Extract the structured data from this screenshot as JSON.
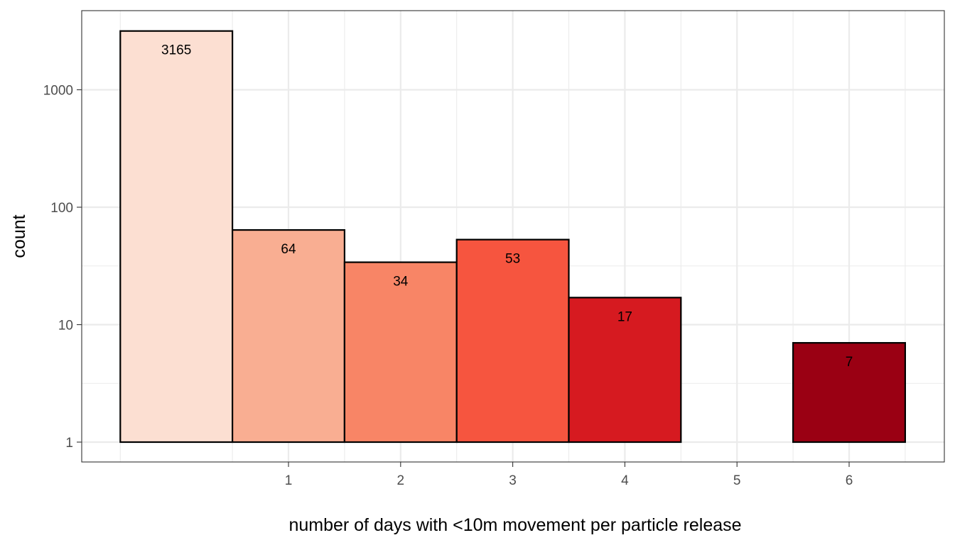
{
  "chart_data": {
    "type": "bar",
    "title": "",
    "xlabel": "number of days with <10m movement per particle release",
    "ylabel": "count",
    "y_scale": "log10",
    "ylim": [
      1,
      3165
    ],
    "x_ticks": [
      1,
      2,
      3,
      4,
      5,
      6
    ],
    "y_ticks": [
      1,
      10,
      100,
      1000
    ],
    "y_tick_labels": [
      "1",
      "10",
      "100",
      "1000"
    ],
    "grid": true,
    "legend": "none",
    "bars": [
      {
        "label": "3165",
        "value": 3165,
        "x_start": -0.5,
        "x_end": 0.5,
        "color": "#FCDFD2"
      },
      {
        "label": "64",
        "value": 64,
        "x_start": 0.5,
        "x_end": 1.5,
        "color": "#F9AE92"
      },
      {
        "label": "34",
        "value": 34,
        "x_start": 1.5,
        "x_end": 2.5,
        "color": "#F88566"
      },
      {
        "label": "53",
        "value": 53,
        "x_start": 2.5,
        "x_end": 3.5,
        "color": "#F6553F"
      },
      {
        "label": "17",
        "value": 17,
        "x_start": 3.5,
        "x_end": 4.5,
        "color": "#D61A20"
      },
      {
        "label": "7",
        "value": 7,
        "x_start": 5.5,
        "x_end": 6.5,
        "color": "#9A0013"
      }
    ],
    "colors": {
      "grid": "#EBEBEB",
      "panel_border": "#333333",
      "bar_outline": "#000000"
    }
  }
}
